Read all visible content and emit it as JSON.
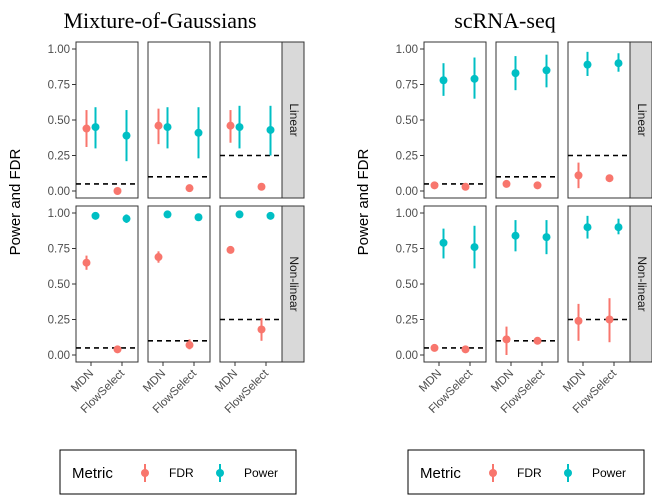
{
  "colors": {
    "FDR": "#F8766D",
    "Power": "#00BFC4"
  },
  "legend": {
    "title": "Metric",
    "entries": [
      "FDR",
      "Power"
    ]
  },
  "chart_data": [
    {
      "type": "scatter",
      "title": "Mixture-of-Gaussians",
      "ylabel": "Power and FDR",
      "ylim": [
        0,
        1
      ],
      "yticks": [
        0,
        0.25,
        0.5,
        0.75,
        1
      ],
      "ytick_labels": [
        "0.00",
        "0.25",
        "0.50",
        "0.75",
        "1.00"
      ],
      "categories": [
        "MDN",
        "FlowSelect"
      ],
      "rows": [
        "Linear",
        "Non-linear"
      ],
      "panels": [
        {
          "row": "Linear",
          "col": 1,
          "threshold": 0.05,
          "points": [
            {
              "method": "MDN",
              "metric": "FDR",
              "value": 0.44,
              "lo": 0.31,
              "hi": 0.57
            },
            {
              "method": "MDN",
              "metric": "Power",
              "value": 0.45,
              "lo": 0.3,
              "hi": 0.59
            },
            {
              "method": "FlowSelect",
              "metric": "FDR",
              "value": 0.0,
              "lo": 0.0,
              "hi": 0.0
            },
            {
              "method": "FlowSelect",
              "metric": "Power",
              "value": 0.39,
              "lo": 0.21,
              "hi": 0.57
            }
          ]
        },
        {
          "row": "Linear",
          "col": 2,
          "threshold": 0.1,
          "points": [
            {
              "method": "MDN",
              "metric": "FDR",
              "value": 0.46,
              "lo": 0.33,
              "hi": 0.58
            },
            {
              "method": "MDN",
              "metric": "Power",
              "value": 0.45,
              "lo": 0.3,
              "hi": 0.59
            },
            {
              "method": "FlowSelect",
              "metric": "FDR",
              "value": 0.02,
              "lo": 0.01,
              "hi": 0.03
            },
            {
              "method": "FlowSelect",
              "metric": "Power",
              "value": 0.41,
              "lo": 0.23,
              "hi": 0.59
            }
          ]
        },
        {
          "row": "Linear",
          "col": 3,
          "threshold": 0.25,
          "points": [
            {
              "method": "MDN",
              "metric": "FDR",
              "value": 0.46,
              "lo": 0.34,
              "hi": 0.57
            },
            {
              "method": "MDN",
              "metric": "Power",
              "value": 0.45,
              "lo": 0.3,
              "hi": 0.6
            },
            {
              "method": "FlowSelect",
              "metric": "FDR",
              "value": 0.03,
              "lo": 0.02,
              "hi": 0.04
            },
            {
              "method": "FlowSelect",
              "metric": "Power",
              "value": 0.43,
              "lo": 0.25,
              "hi": 0.6
            }
          ]
        },
        {
          "row": "Non-linear",
          "col": 1,
          "threshold": 0.05,
          "points": [
            {
              "method": "MDN",
              "metric": "FDR",
              "value": 0.65,
              "lo": 0.6,
              "hi": 0.7
            },
            {
              "method": "MDN",
              "metric": "Power",
              "value": 0.98,
              "lo": 0.97,
              "hi": 0.99
            },
            {
              "method": "FlowSelect",
              "metric": "FDR",
              "value": 0.04,
              "lo": 0.03,
              "hi": 0.05
            },
            {
              "method": "FlowSelect",
              "metric": "Power",
              "value": 0.96,
              "lo": 0.93,
              "hi": 0.99
            }
          ]
        },
        {
          "row": "Non-linear",
          "col": 2,
          "threshold": 0.1,
          "points": [
            {
              "method": "MDN",
              "metric": "FDR",
              "value": 0.69,
              "lo": 0.65,
              "hi": 0.73
            },
            {
              "method": "MDN",
              "metric": "Power",
              "value": 0.99,
              "lo": 0.98,
              "hi": 1.0
            },
            {
              "method": "FlowSelect",
              "metric": "FDR",
              "value": 0.07,
              "lo": 0.04,
              "hi": 0.11
            },
            {
              "method": "FlowSelect",
              "metric": "Power",
              "value": 0.97,
              "lo": 0.96,
              "hi": 0.98
            }
          ]
        },
        {
          "row": "Non-linear",
          "col": 3,
          "threshold": 0.25,
          "points": [
            {
              "method": "MDN",
              "metric": "FDR",
              "value": 0.74,
              "lo": 0.74,
              "hi": 0.74
            },
            {
              "method": "MDN",
              "metric": "Power",
              "value": 0.99,
              "lo": 0.99,
              "hi": 1.0
            },
            {
              "method": "FlowSelect",
              "metric": "FDR",
              "value": 0.18,
              "lo": 0.1,
              "hi": 0.26
            },
            {
              "method": "FlowSelect",
              "metric": "Power",
              "value": 0.98,
              "lo": 0.97,
              "hi": 0.99
            }
          ]
        }
      ]
    },
    {
      "type": "scatter",
      "title": "scRNA-seq",
      "ylabel": "Power and FDR",
      "ylim": [
        0,
        1
      ],
      "yticks": [
        0,
        0.25,
        0.5,
        0.75,
        1
      ],
      "ytick_labels": [
        "0.00",
        "0.25",
        "0.50",
        "0.75",
        "1.00"
      ],
      "categories": [
        "MDN",
        "FlowSelect"
      ],
      "rows": [
        "Linear",
        "Non-linear"
      ],
      "panels": [
        {
          "row": "Linear",
          "col": 1,
          "threshold": 0.05,
          "points": [
            {
              "method": "MDN",
              "metric": "FDR",
              "value": 0.04,
              "lo": 0.03,
              "hi": 0.05
            },
            {
              "method": "MDN",
              "metric": "Power",
              "value": 0.78,
              "lo": 0.67,
              "hi": 0.9
            },
            {
              "method": "FlowSelect",
              "metric": "FDR",
              "value": 0.03,
              "lo": 0.02,
              "hi": 0.04
            },
            {
              "method": "FlowSelect",
              "metric": "Power",
              "value": 0.79,
              "lo": 0.65,
              "hi": 0.94
            }
          ]
        },
        {
          "row": "Linear",
          "col": 2,
          "threshold": 0.1,
          "points": [
            {
              "method": "MDN",
              "metric": "FDR",
              "value": 0.05,
              "lo": 0.04,
              "hi": 0.06
            },
            {
              "method": "MDN",
              "metric": "Power",
              "value": 0.83,
              "lo": 0.71,
              "hi": 0.95
            },
            {
              "method": "FlowSelect",
              "metric": "FDR",
              "value": 0.04,
              "lo": 0.03,
              "hi": 0.05
            },
            {
              "method": "FlowSelect",
              "metric": "Power",
              "value": 0.85,
              "lo": 0.73,
              "hi": 0.96
            }
          ]
        },
        {
          "row": "Linear",
          "col": 3,
          "threshold": 0.25,
          "points": [
            {
              "method": "MDN",
              "metric": "FDR",
              "value": 0.11,
              "lo": 0.02,
              "hi": 0.2
            },
            {
              "method": "MDN",
              "metric": "Power",
              "value": 0.89,
              "lo": 0.81,
              "hi": 0.98
            },
            {
              "method": "FlowSelect",
              "metric": "FDR",
              "value": 0.09,
              "lo": 0.08,
              "hi": 0.1
            },
            {
              "method": "FlowSelect",
              "metric": "Power",
              "value": 0.9,
              "lo": 0.84,
              "hi": 0.97
            }
          ]
        },
        {
          "row": "Non-linear",
          "col": 1,
          "threshold": 0.05,
          "points": [
            {
              "method": "MDN",
              "metric": "FDR",
              "value": 0.05,
              "lo": 0.04,
              "hi": 0.06
            },
            {
              "method": "MDN",
              "metric": "Power",
              "value": 0.79,
              "lo": 0.68,
              "hi": 0.89
            },
            {
              "method": "FlowSelect",
              "metric": "FDR",
              "value": 0.04,
              "lo": 0.03,
              "hi": 0.05
            },
            {
              "method": "FlowSelect",
              "metric": "Power",
              "value": 0.76,
              "lo": 0.61,
              "hi": 0.91
            }
          ]
        },
        {
          "row": "Non-linear",
          "col": 2,
          "threshold": 0.1,
          "points": [
            {
              "method": "MDN",
              "metric": "FDR",
              "value": 0.11,
              "lo": 0.0,
              "hi": 0.2
            },
            {
              "method": "MDN",
              "metric": "Power",
              "value": 0.84,
              "lo": 0.73,
              "hi": 0.95
            },
            {
              "method": "FlowSelect",
              "metric": "FDR",
              "value": 0.1,
              "lo": 0.09,
              "hi": 0.11
            },
            {
              "method": "FlowSelect",
              "metric": "Power",
              "value": 0.83,
              "lo": 0.71,
              "hi": 0.95
            }
          ]
        },
        {
          "row": "Non-linear",
          "col": 3,
          "threshold": 0.25,
          "points": [
            {
              "method": "MDN",
              "metric": "FDR",
              "value": 0.24,
              "lo": 0.1,
              "hi": 0.36
            },
            {
              "method": "MDN",
              "metric": "Power",
              "value": 0.9,
              "lo": 0.82,
              "hi": 0.98
            },
            {
              "method": "FlowSelect",
              "metric": "FDR",
              "value": 0.25,
              "lo": 0.09,
              "hi": 0.4
            },
            {
              "method": "FlowSelect",
              "metric": "Power",
              "value": 0.9,
              "lo": 0.85,
              "hi": 0.96
            }
          ]
        }
      ]
    }
  ]
}
